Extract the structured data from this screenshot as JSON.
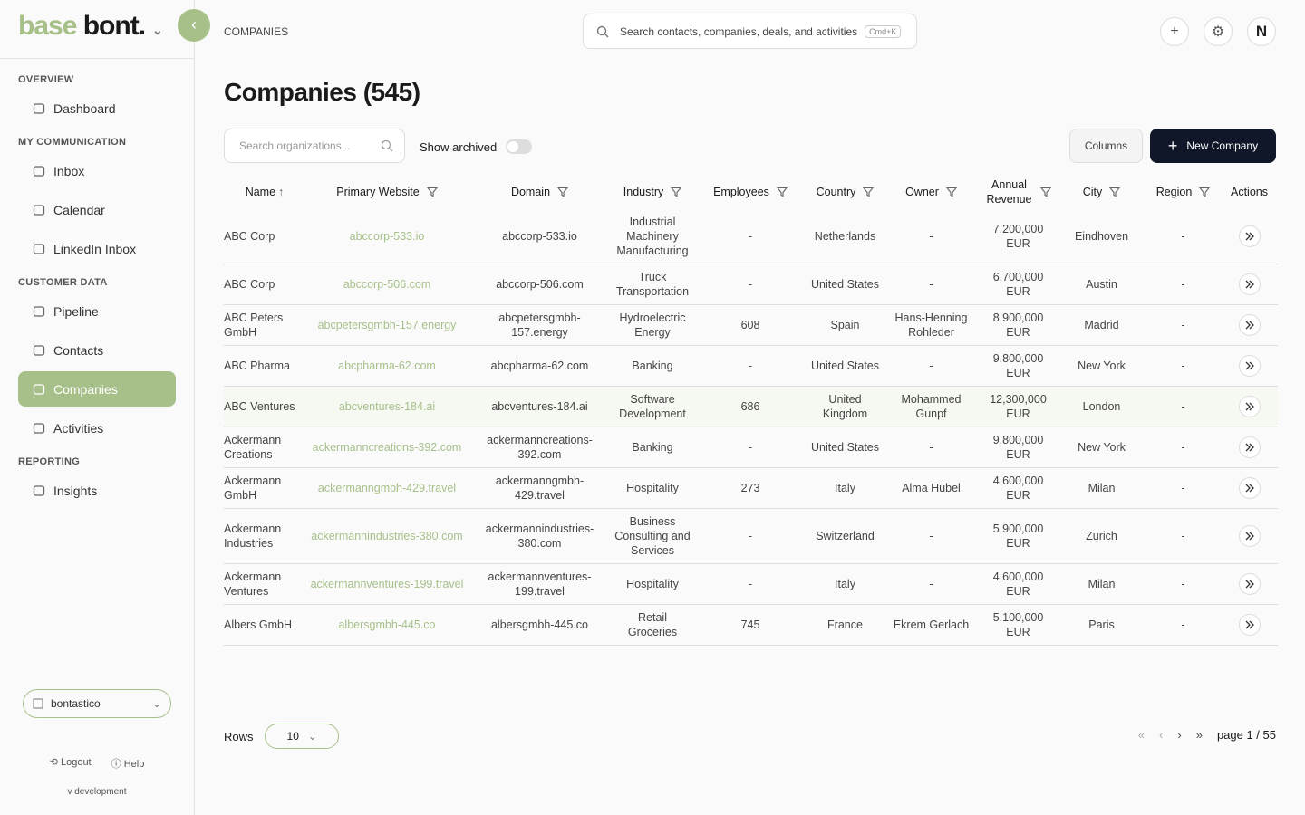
{
  "logo": {
    "first": "base",
    "second": "bont."
  },
  "breadcrumb": "COMPANIES",
  "global_search": {
    "placeholder": "Search contacts, companies, deals, and activities",
    "shortcut": "Cmd+K"
  },
  "avatar": "N",
  "sidebar": {
    "sections": [
      {
        "title": "OVERVIEW",
        "items": [
          "Dashboard"
        ]
      },
      {
        "title": "MY COMMUNICATION",
        "items": [
          "Inbox",
          "Calendar",
          "LinkedIn Inbox"
        ]
      },
      {
        "title": "CUSTOMER DATA",
        "items": [
          "Pipeline",
          "Contacts",
          "Companies",
          "Activities"
        ]
      },
      {
        "title": "REPORTING",
        "items": [
          "Insights"
        ]
      }
    ],
    "workspace": "bontastico",
    "logout": "Logout",
    "help": "Help",
    "version": "v development"
  },
  "page_title": "Companies (545)",
  "toolbar": {
    "search_placeholder": "Search organizations...",
    "show_archived": "Show archived",
    "columns_button": "Columns",
    "new_button": "New Company"
  },
  "table": {
    "columns": [
      "Name",
      "Primary Website",
      "Domain",
      "Industry",
      "Employees",
      "Country",
      "Owner",
      "Annual Revenue",
      "City",
      "Region",
      "Actions"
    ],
    "rows": [
      [
        "ABC Corp",
        "abccorp-533.io",
        "abccorp-533.io",
        "Industrial Machinery Manufacturing",
        "-",
        "Netherlands",
        "-",
        "7,200,000 EUR",
        "Eindhoven",
        "-"
      ],
      [
        "ABC Corp",
        "abccorp-506.com",
        "abccorp-506.com",
        "Truck Transportation",
        "-",
        "United States",
        "-",
        "6,700,000 EUR",
        "Austin",
        "-"
      ],
      [
        "ABC Peters GmbH",
        "abcpetersgmbh-157.energy",
        "abcpetersgmbh-157.energy",
        "Hydroelectric Energy",
        "608",
        "Spain",
        "Hans-Henning Rohleder",
        "8,900,000 EUR",
        "Madrid",
        "-"
      ],
      [
        "ABC Pharma",
        "abcpharma-62.com",
        "abcpharma-62.com",
        "Banking",
        "-",
        "United States",
        "-",
        "9,800,000 EUR",
        "New York",
        "-"
      ],
      [
        "ABC Ventures",
        "abcventures-184.ai",
        "abcventures-184.ai",
        "Software Development",
        "686",
        "United Kingdom",
        "Mohammed Gunpf",
        "12,300,000 EUR",
        "London",
        "-"
      ],
      [
        "Ackermann Creations",
        "ackermanncreations-392.com",
        "ackermanncreations-392.com",
        "Banking",
        "-",
        "United States",
        "-",
        "9,800,000 EUR",
        "New York",
        "-"
      ],
      [
        "Ackermann GmbH",
        "ackermanngmbh-429.travel",
        "ackermanngmbh-429.travel",
        "Hospitality",
        "273",
        "Italy",
        "Alma Hübel",
        "4,600,000 EUR",
        "Milan",
        "-"
      ],
      [
        "Ackermann Industries",
        "ackermannindustries-380.com",
        "ackermannindustries-380.com",
        "Business Consulting and Services",
        "-",
        "Switzerland",
        "-",
        "5,900,000 EUR",
        "Zurich",
        "-"
      ],
      [
        "Ackermann Ventures",
        "ackermannventures-199.travel",
        "ackermannventures-199.travel",
        "Hospitality",
        "-",
        "Italy",
        "-",
        "4,600,000 EUR",
        "Milan",
        "-"
      ],
      [
        "Albers GmbH",
        "albersgmbh-445.co",
        "albersgmbh-445.co",
        "Retail Groceries",
        "745",
        "France",
        "Ekrem Gerlach",
        "5,100,000 EUR",
        "Paris",
        "-"
      ]
    ]
  },
  "pagination": {
    "rows_label": "Rows",
    "rows_value": "10",
    "page": "page 1 / 55"
  }
}
